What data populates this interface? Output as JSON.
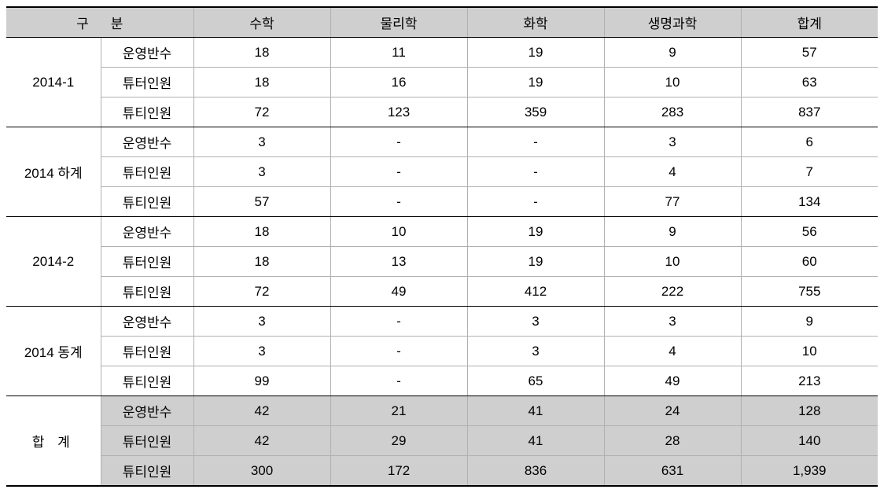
{
  "header": {
    "gubun1": "구",
    "gubun2": "분",
    "cols": [
      "수학",
      "물리학",
      "화학",
      "생명과학",
      "합계"
    ]
  },
  "metricLabels": {
    "classes": "운영반수",
    "tutors": "튜터인원",
    "tutees": "튜티인원"
  },
  "periods": [
    {
      "label": "2014-1",
      "rows": [
        [
          "18",
          "11",
          "19",
          "9",
          "57"
        ],
        [
          "18",
          "16",
          "19",
          "10",
          "63"
        ],
        [
          "72",
          "123",
          "359",
          "283",
          "837"
        ]
      ]
    },
    {
      "label": "2014 하계",
      "rows": [
        [
          "3",
          "-",
          "-",
          "3",
          "6"
        ],
        [
          "3",
          "-",
          "-",
          "4",
          "7"
        ],
        [
          "57",
          "-",
          "-",
          "77",
          "134"
        ]
      ]
    },
    {
      "label": "2014-2",
      "rows": [
        [
          "18",
          "10",
          "19",
          "9",
          "56"
        ],
        [
          "18",
          "13",
          "19",
          "10",
          "60"
        ],
        [
          "72",
          "49",
          "412",
          "222",
          "755"
        ]
      ]
    },
    {
      "label": "2014 동계",
      "rows": [
        [
          "3",
          "-",
          "3",
          "3",
          "9"
        ],
        [
          "3",
          "-",
          "3",
          "4",
          "10"
        ],
        [
          "99",
          "-",
          "65",
          "49",
          "213"
        ]
      ]
    }
  ],
  "totals": {
    "label": "합   계",
    "rows": [
      [
        "42",
        "21",
        "41",
        "24",
        "128"
      ],
      [
        "42",
        "29",
        "41",
        "28",
        "140"
      ],
      [
        "300",
        "172",
        "836",
        "631",
        "1,939"
      ]
    ]
  },
  "colors": {
    "headerBg": "#cfcfcf",
    "border": "#b0b0b0",
    "strongBorder": "#000000",
    "text": "#000000",
    "bg": "#ffffff"
  },
  "fontSizePt": 13
}
